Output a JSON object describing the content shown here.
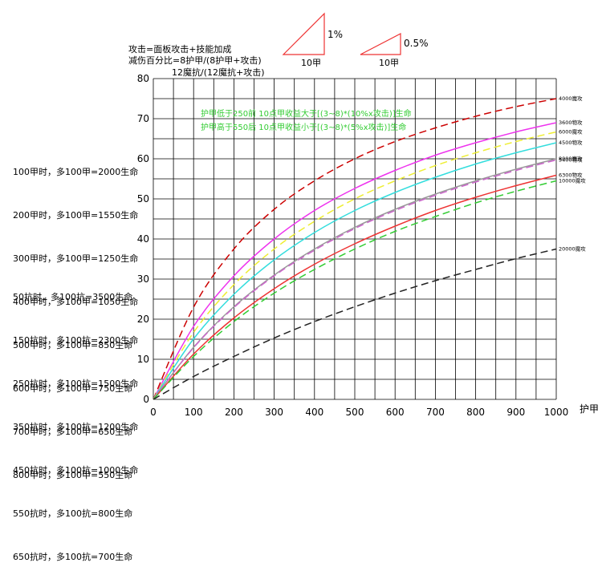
{
  "notes": {
    "formula1": "攻击=面板攻击+技能加成",
    "formula2": "减伤百分比=8护甲/(8护甲+攻击)",
    "formula3": "12魔抗/(12魔抗+攻击)",
    "slope1_pct": "1%",
    "slope1_base": "10甲",
    "slope2_pct": "0.5%",
    "slope2_base": "10甲"
  },
  "annotations": {
    "line1": "护甲低于250前 10点甲收益大于[(3~8)*(10%x攻击)]生命",
    "line2": "护甲高于550后 10点甲收益小于[(3~8)*(5%x攻击)]生命",
    "color": "#33cc33"
  },
  "armor_list": [
    "100甲时，多100甲=2000生命",
    "200甲时，多100甲=1550生命",
    "300甲时，多100甲=1250生命",
    "400甲时，多100甲=1050生命",
    "500甲时，多100甲=850生命",
    "600甲时，多100甲=750生命",
    "700甲时，多100甲=650生命",
    "800甲时，多100甲=550生命"
  ],
  "mr_list": [
    "50抗时，多100抗=3500生命",
    "150抗时，多100抗=2300生命",
    "250抗时，多100抗=1500生命",
    "350抗时，多100抗=1200生命",
    "450抗时，多100抗=1000生命",
    "550抗时，多100抗=800生命",
    "650抗时，多100抗=700生命"
  ],
  "chart_data": {
    "type": "line",
    "xlabel": "护甲",
    "ylabel": "",
    "xlim": [
      0,
      1000
    ],
    "ylim": [
      0,
      80
    ],
    "xticks": [
      0,
      100,
      200,
      300,
      400,
      500,
      600,
      700,
      800,
      900,
      1000
    ],
    "yticks": [
      0,
      10,
      20,
      30,
      40,
      50,
      60,
      70,
      80
    ],
    "grid": true,
    "series": [
      {
        "name": "4000魔攻",
        "label": "4000魔攻",
        "color": "#cc0000",
        "dashed": true,
        "x": [
          0,
          100,
          200,
          300,
          400,
          500,
          600,
          700,
          800,
          900,
          1000
        ],
        "y": [
          0,
          23,
          37.5,
          47.4,
          54.5,
          60,
          64.3,
          67.7,
          70.6,
          73,
          75
        ]
      },
      {
        "name": "3600物攻",
        "label": "3600物攻",
        "color": "#ee33ee",
        "dashed": false,
        "x": [
          0,
          100,
          200,
          300,
          400,
          500,
          600,
          700,
          800,
          900,
          1000
        ],
        "y": [
          0,
          18.2,
          30.8,
          40,
          47.1,
          52.6,
          57.1,
          60.9,
          64,
          66.7,
          69
        ]
      },
      {
        "name": "6000魔攻",
        "label": "6000魔攻",
        "color": "#eeee33",
        "dashed": true,
        "x": [
          0,
          100,
          200,
          300,
          400,
          500,
          600,
          700,
          800,
          900,
          1000
        ],
        "y": [
          0,
          16.7,
          28.6,
          37.5,
          44.4,
          50,
          54.5,
          58.3,
          61.5,
          64.3,
          66.7
        ]
      },
      {
        "name": "4500物攻",
        "label": "4500物攻",
        "color": "#33dddd",
        "dashed": false,
        "x": [
          0,
          100,
          200,
          300,
          400,
          500,
          600,
          700,
          800,
          900,
          1000
        ],
        "y": [
          0,
          15.1,
          26.2,
          34.8,
          41.6,
          47.1,
          51.6,
          55.4,
          58.7,
          61.5,
          64
        ]
      },
      {
        "name": "8000魔攻",
        "label": "8000魔攻",
        "color": "#999999",
        "dashed": false,
        "x": [
          0,
          100,
          200,
          300,
          400,
          500,
          600,
          700,
          800,
          900,
          1000
        ],
        "y": [
          0,
          13,
          23.1,
          31,
          37.5,
          42.9,
          47.4,
          51.2,
          54.5,
          57.4,
          60
        ]
      },
      {
        "name": "5400物攻",
        "label": "5400物攻",
        "color": "#cc66cc",
        "dashed": true,
        "x": [
          0,
          100,
          200,
          300,
          400,
          500,
          600,
          700,
          800,
          900,
          1000
        ],
        "y": [
          0,
          12.9,
          22.9,
          30.8,
          37.2,
          42.6,
          47.1,
          50.9,
          54.2,
          57.1,
          59.7
        ]
      },
      {
        "name": "6300物攻",
        "label": "6300物攻",
        "color": "#ee3333",
        "dashed": false,
        "x": [
          0,
          100,
          200,
          300,
          400,
          500,
          600,
          700,
          800,
          900,
          1000
        ],
        "y": [
          0,
          11.3,
          20.3,
          27.6,
          33.7,
          38.8,
          43.2,
          47.1,
          50.4,
          53.3,
          55.9
        ]
      },
      {
        "name": "10000魔攻",
        "label": "10000魔攻",
        "color": "#33cc33",
        "dashed": true,
        "x": [
          0,
          100,
          200,
          300,
          400,
          500,
          600,
          700,
          800,
          900,
          1000
        ],
        "y": [
          0,
          10.7,
          19.4,
          26.5,
          32.4,
          37.5,
          41.9,
          45.6,
          49,
          51.9,
          54.5
        ]
      },
      {
        "name": "20000魔攻",
        "label": "20000魔攻",
        "color": "#222222",
        "dashed": true,
        "x": [
          0,
          100,
          200,
          300,
          400,
          500,
          600,
          700,
          800,
          900,
          1000
        ],
        "y": [
          0,
          5.7,
          10.7,
          15.3,
          19.4,
          23.1,
          26.5,
          29.6,
          32.4,
          35.1,
          37.5
        ]
      }
    ]
  }
}
